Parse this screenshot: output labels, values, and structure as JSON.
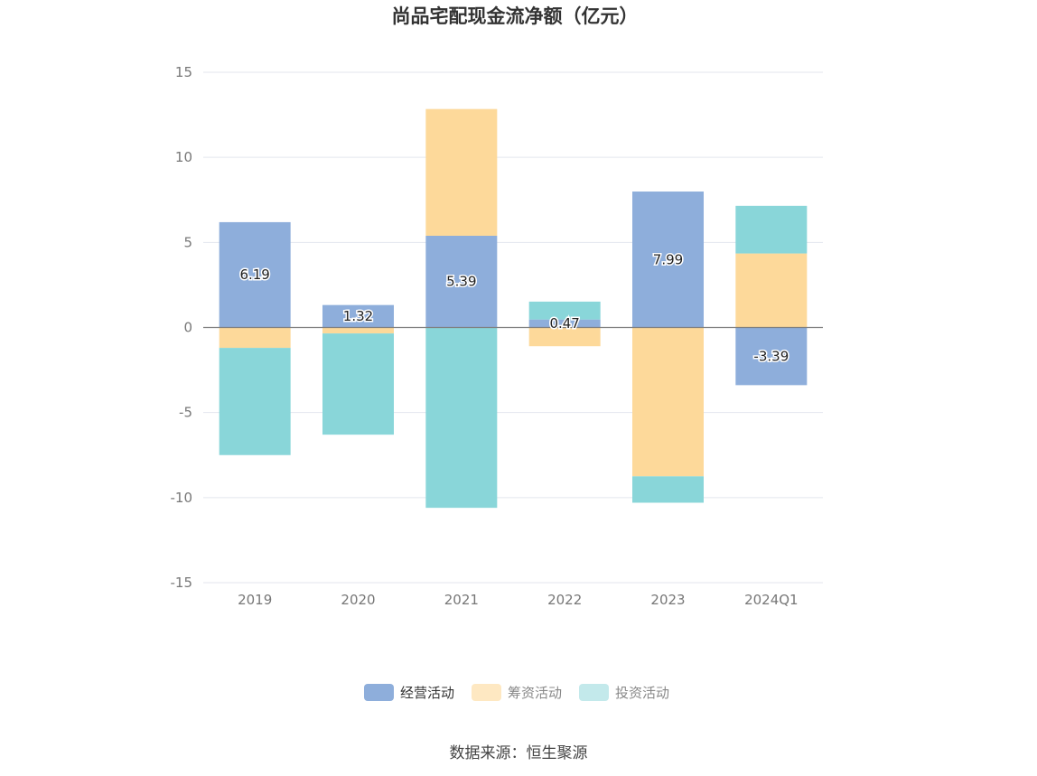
{
  "chart_data": {
    "type": "bar",
    "stacked": true,
    "title": "尚品宅配现金流净额（亿元）",
    "categories": [
      "2019",
      "2020",
      "2021",
      "2022",
      "2023",
      "2024Q1"
    ],
    "series": [
      {
        "name": "经营活动",
        "color": "#8eaedb",
        "values": [
          6.19,
          1.32,
          5.39,
          0.47,
          7.99,
          -3.39
        ],
        "show_labels": true
      },
      {
        "name": "筹资活动",
        "color": "#fdd99a",
        "values": [
          -1.2,
          -0.35,
          7.45,
          -1.1,
          -8.75,
          4.35
        ],
        "show_labels": false
      },
      {
        "name": "投资活动",
        "color": "#89d6d9",
        "values": [
          -6.3,
          -5.95,
          -10.6,
          1.05,
          -1.55,
          2.8
        ],
        "show_labels": false
      }
    ],
    "data_labels": [
      "6.19",
      "1.32",
      "5.39",
      "0.47",
      "7.99",
      "-3.39"
    ],
    "ylim": [
      -15,
      15
    ],
    "yticks": [
      "15",
      "10",
      "5",
      "0",
      "-5",
      "-10",
      "-15"
    ],
    "grid": true,
    "legend_position": "bottom",
    "legend_active": [
      true,
      false,
      false
    ],
    "legend_inactive_colors": [
      "#8eaedb",
      "#fee8c2",
      "#c3e9eb"
    ]
  },
  "footer": {
    "source": "数据来源：恒生聚源"
  }
}
